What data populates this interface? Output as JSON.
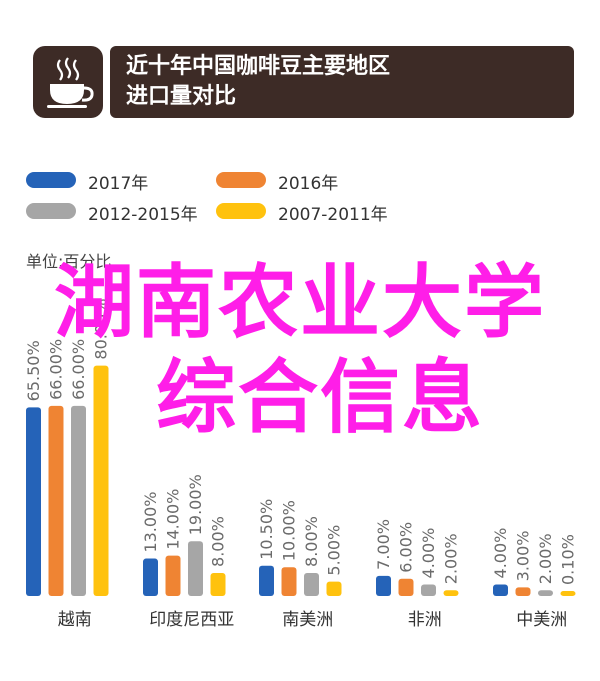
{
  "header": {
    "title": "近十年中国咖啡豆主要地区\n进口量对比",
    "icon": "coffee-cup-icon"
  },
  "unit_label": "单位:百分比",
  "overlay": {
    "line1": "湖南农业大学",
    "line2": "综合信息",
    "color": "#ff1ee8"
  },
  "chart_data": {
    "type": "bar",
    "categories": [
      "越南",
      "印度尼西亚",
      "南美洲",
      "非洲",
      "中美洲"
    ],
    "series": [
      {
        "name": "2017年",
        "color": "#2563b8",
        "values": [
          65.5,
          13.0,
          10.5,
          7.0,
          4.0
        ],
        "labels": [
          "65.50%",
          "13.00%",
          "10.50%",
          "7.00%",
          "4.00%"
        ]
      },
      {
        "name": "2016年",
        "color": "#ef8433",
        "values": [
          66.0,
          14.0,
          10.0,
          6.0,
          3.0
        ],
        "labels": [
          "66.00%",
          "14.00%",
          "10.00%",
          "6.00%",
          "3.00%"
        ]
      },
      {
        "name": "2012-2015年",
        "color": "#a6a6a6",
        "values": [
          66.0,
          19.0,
          8.0,
          4.0,
          2.0
        ],
        "labels": [
          "66.00%",
          "19.00%",
          "8.00%",
          "4.00%",
          "2.00%"
        ]
      },
      {
        "name": "2007-2011年",
        "color": "#ffc20e",
        "values": [
          80.0,
          8.0,
          5.0,
          2.0,
          0.1
        ],
        "labels": [
          "80.00%",
          "8.00%",
          "5.00%",
          "2.00%",
          "0.10%"
        ]
      }
    ],
    "ylim": [
      0,
      100
    ],
    "legend_position": "top-left",
    "grid": false
  }
}
